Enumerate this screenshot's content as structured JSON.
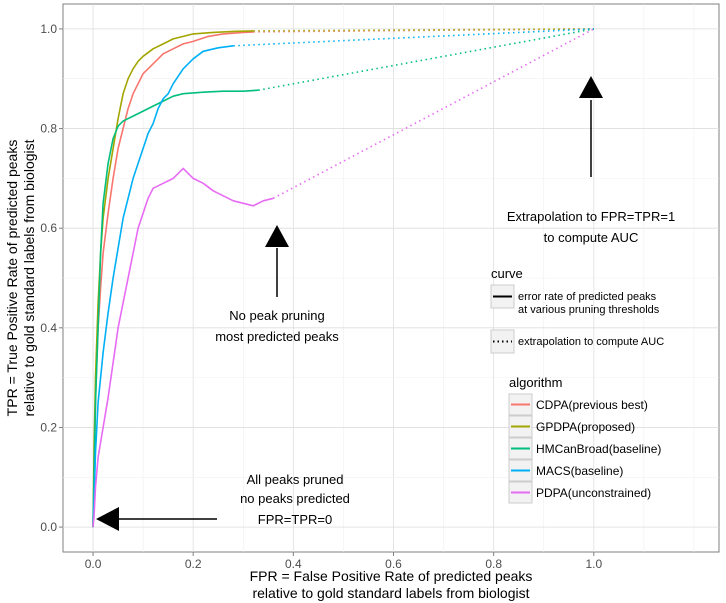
{
  "chart_data": {
    "type": "line",
    "xlabel": "FPR = False Positive Rate of predicted peaks",
    "xlabel2": "relative to gold standard labels from biologist",
    "ylabel": "TPR = True Positive Rate of predicted peaks",
    "ylabel2": "relative to gold standard labels from biologist",
    "xlim": [
      -0.06,
      1.25
    ],
    "ylim": [
      -0.05,
      1.05
    ],
    "xticks": [
      0.0,
      0.2,
      0.4,
      0.6,
      0.8,
      1.0
    ],
    "xtick_labels": [
      "0.0",
      "0.2",
      "0.4",
      "0.6",
      "0.8",
      "1.0"
    ],
    "yticks": [
      0.0,
      0.2,
      0.4,
      0.6,
      0.8,
      1.0
    ],
    "ytick_labels": [
      "0.0",
      "0.2",
      "0.4",
      "0.6",
      "0.8",
      "1.0"
    ],
    "grid": true,
    "legend_curve": {
      "title": "curve",
      "items": [
        {
          "style": "solid",
          "label_line1": "error rate of predicted peaks",
          "label_line2": "at various pruning thresholds"
        },
        {
          "style": "dotted",
          "label_line1": "extrapolation to compute AUC",
          "label_line2": ""
        }
      ]
    },
    "legend_algorithm": {
      "title": "algorithm",
      "items": [
        {
          "label": "CDPA(previous best)",
          "color": "#F8766D"
        },
        {
          "label": "GPDPA(proposed)",
          "color": "#A3A500"
        },
        {
          "label": "HMCanBroad(baseline)",
          "color": "#00BF7D"
        },
        {
          "label": "MACS(baseline)",
          "color": "#00B0F6"
        },
        {
          "label": "PDPA(unconstrained)",
          "color": "#E76BF3"
        }
      ]
    },
    "series": [
      {
        "name": "CDPA(previous best)",
        "color": "#F8766D",
        "points": [
          [
            0.0,
            0.0
          ],
          [
            0.002,
            0.08
          ],
          [
            0.004,
            0.2
          ],
          [
            0.006,
            0.3
          ],
          [
            0.01,
            0.4
          ],
          [
            0.015,
            0.48
          ],
          [
            0.02,
            0.55
          ],
          [
            0.03,
            0.63
          ],
          [
            0.04,
            0.7
          ],
          [
            0.05,
            0.76
          ],
          [
            0.06,
            0.8
          ],
          [
            0.07,
            0.84
          ],
          [
            0.08,
            0.87
          ],
          [
            0.09,
            0.89
          ],
          [
            0.1,
            0.91
          ],
          [
            0.12,
            0.93
          ],
          [
            0.14,
            0.95
          ],
          [
            0.16,
            0.96
          ],
          [
            0.18,
            0.97
          ],
          [
            0.2,
            0.975
          ],
          [
            0.23,
            0.985
          ],
          [
            0.26,
            0.99
          ],
          [
            0.3,
            0.993
          ],
          [
            0.32,
            0.994
          ]
        ],
        "extrapolation": [
          [
            0.32,
            0.994
          ],
          [
            1.0,
            1.0
          ]
        ]
      },
      {
        "name": "GPDPA(proposed)",
        "color": "#A3A500",
        "points": [
          [
            0.0,
            0.0
          ],
          [
            0.002,
            0.15
          ],
          [
            0.005,
            0.3
          ],
          [
            0.01,
            0.45
          ],
          [
            0.015,
            0.55
          ],
          [
            0.02,
            0.62
          ],
          [
            0.03,
            0.7
          ],
          [
            0.04,
            0.76
          ],
          [
            0.05,
            0.82
          ],
          [
            0.06,
            0.87
          ],
          [
            0.07,
            0.9
          ],
          [
            0.08,
            0.92
          ],
          [
            0.09,
            0.935
          ],
          [
            0.1,
            0.945
          ],
          [
            0.12,
            0.96
          ],
          [
            0.14,
            0.97
          ],
          [
            0.16,
            0.98
          ],
          [
            0.18,
            0.985
          ],
          [
            0.2,
            0.99
          ],
          [
            0.24,
            0.993
          ],
          [
            0.28,
            0.995
          ],
          [
            0.32,
            0.996
          ]
        ],
        "extrapolation": [
          [
            0.32,
            0.996
          ],
          [
            1.0,
            1.0
          ]
        ]
      },
      {
        "name": "HMCanBroad(baseline)",
        "color": "#00BF7D",
        "points": [
          [
            0.0,
            0.0
          ],
          [
            0.002,
            0.1
          ],
          [
            0.005,
            0.25
          ],
          [
            0.01,
            0.4
          ],
          [
            0.015,
            0.55
          ],
          [
            0.02,
            0.65
          ],
          [
            0.03,
            0.73
          ],
          [
            0.04,
            0.78
          ],
          [
            0.05,
            0.805
          ],
          [
            0.06,
            0.815
          ],
          [
            0.08,
            0.825
          ],
          [
            0.1,
            0.835
          ],
          [
            0.12,
            0.845
          ],
          [
            0.14,
            0.855
          ],
          [
            0.16,
            0.865
          ],
          [
            0.18,
            0.87
          ],
          [
            0.22,
            0.873
          ],
          [
            0.26,
            0.875
          ],
          [
            0.3,
            0.875
          ],
          [
            0.33,
            0.877
          ]
        ],
        "extrapolation": [
          [
            0.33,
            0.877
          ],
          [
            1.0,
            1.0
          ]
        ]
      },
      {
        "name": "MACS(baseline)",
        "color": "#00B0F6",
        "points": [
          [
            0.0,
            0.0
          ],
          [
            0.002,
            0.05
          ],
          [
            0.005,
            0.15
          ],
          [
            0.01,
            0.25
          ],
          [
            0.02,
            0.35
          ],
          [
            0.03,
            0.43
          ],
          [
            0.04,
            0.5
          ],
          [
            0.05,
            0.56
          ],
          [
            0.06,
            0.62
          ],
          [
            0.07,
            0.66
          ],
          [
            0.08,
            0.7
          ],
          [
            0.09,
            0.73
          ],
          [
            0.1,
            0.76
          ],
          [
            0.11,
            0.79
          ],
          [
            0.12,
            0.81
          ],
          [
            0.13,
            0.84
          ],
          [
            0.14,
            0.86
          ],
          [
            0.15,
            0.87
          ],
          [
            0.16,
            0.89
          ],
          [
            0.18,
            0.92
          ],
          [
            0.2,
            0.94
          ],
          [
            0.22,
            0.955
          ],
          [
            0.25,
            0.962
          ],
          [
            0.28,
            0.966
          ]
        ],
        "extrapolation": [
          [
            0.28,
            0.966
          ],
          [
            1.0,
            1.0
          ]
        ]
      },
      {
        "name": "PDPA(unconstrained)",
        "color": "#E76BF3",
        "points": [
          [
            0.0,
            0.0
          ],
          [
            0.002,
            0.02
          ],
          [
            0.005,
            0.08
          ],
          [
            0.01,
            0.14
          ],
          [
            0.02,
            0.2
          ],
          [
            0.03,
            0.26
          ],
          [
            0.04,
            0.33
          ],
          [
            0.05,
            0.4
          ],
          [
            0.06,
            0.45
          ],
          [
            0.07,
            0.5
          ],
          [
            0.08,
            0.55
          ],
          [
            0.09,
            0.6
          ],
          [
            0.1,
            0.63
          ],
          [
            0.11,
            0.66
          ],
          [
            0.12,
            0.68
          ],
          [
            0.14,
            0.69
          ],
          [
            0.16,
            0.7
          ],
          [
            0.18,
            0.72
          ],
          [
            0.2,
            0.7
          ],
          [
            0.22,
            0.69
          ],
          [
            0.24,
            0.675
          ],
          [
            0.26,
            0.665
          ],
          [
            0.28,
            0.655
          ],
          [
            0.3,
            0.65
          ],
          [
            0.32,
            0.645
          ],
          [
            0.34,
            0.655
          ],
          [
            0.36,
            0.66
          ]
        ],
        "extrapolation": [
          [
            0.36,
            0.66
          ],
          [
            1.0,
            1.0
          ]
        ]
      }
    ],
    "annotations": [
      {
        "id": "top-right",
        "lines": [
          "Extrapolation to FPR=TPR=1",
          "to compute AUC"
        ],
        "arrow_to": [
          1.0,
          0.9
        ]
      },
      {
        "id": "middle",
        "lines": [
          "No peak pruning",
          "most predicted peaks"
        ],
        "arrow_to": [
          0.37,
          0.6
        ]
      },
      {
        "id": "bottom",
        "lines": [
          "All peaks pruned",
          "no peaks predicted",
          "FPR=TPR=0"
        ],
        "arrow_to": [
          0.0,
          0.02
        ]
      }
    ]
  }
}
